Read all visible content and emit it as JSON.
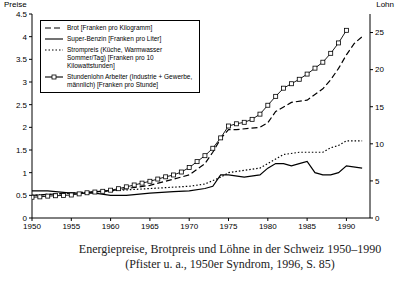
{
  "chart_data": {
    "type": "line",
    "title": "Energiepreise, Brotpreis und Löhne in der Schweiz 1950–1990",
    "subtitle": "(Pfister u. a., 1950er Syndrom, 1996, S. 85)",
    "ylabel": "Preise",
    "y2label": "Lohn",
    "xlim": [
      1950,
      1993
    ],
    "xticks": [
      1950,
      1955,
      1960,
      1965,
      1970,
      1975,
      1980,
      1985,
      1990
    ],
    "ylim": [
      0,
      4.5
    ],
    "yticks": [
      0,
      0.5,
      1,
      1.5,
      2,
      2.5,
      3,
      3.5,
      4,
      4.5
    ],
    "y2lim": [
      0,
      27.5
    ],
    "y2ticks": [
      0,
      5,
      10,
      15,
      20,
      25
    ],
    "legend": "upper left",
    "grid": false,
    "series": [
      {
        "name": "Brot [Franken pro Kilogramm]",
        "color": "#000000",
        "line_style": "dashed",
        "marker": "none",
        "x": [
          1950,
          1955,
          1960,
          1965,
          1970,
          1972,
          1973,
          1974,
          1975,
          1976,
          1979,
          1980,
          1981,
          1983,
          1985,
          1987,
          1988,
          1989,
          1990,
          1991,
          1992
        ],
        "values": [
          0.5,
          0.55,
          0.6,
          0.72,
          0.95,
          1.2,
          1.45,
          1.75,
          1.95,
          1.95,
          2.0,
          2.1,
          2.35,
          2.55,
          2.6,
          2.85,
          3.05,
          3.3,
          3.6,
          3.85,
          4.0
        ]
      },
      {
        "name": "Super-Benzin [Franken pro Liter]",
        "color": "#000000",
        "line_style": "solid",
        "marker": "none",
        "x": [
          1950,
          1952,
          1955,
          1958,
          1960,
          1962,
          1965,
          1968,
          1970,
          1972,
          1973,
          1974,
          1975,
          1977,
          1979,
          1980,
          1981,
          1982,
          1983,
          1984,
          1985,
          1986,
          1987,
          1988,
          1989,
          1990,
          1992
        ],
        "values": [
          0.6,
          0.6,
          0.55,
          0.55,
          0.5,
          0.5,
          0.55,
          0.58,
          0.6,
          0.65,
          0.7,
          0.95,
          0.95,
          0.9,
          0.95,
          1.1,
          1.2,
          1.2,
          1.15,
          1.2,
          1.25,
          1.0,
          0.95,
          0.95,
          1.0,
          1.15,
          1.1
        ]
      },
      {
        "name": "Strompreis (Küche, Warmwasser Sommer/Tag) [Franken pro 10 Kilowattstunden]",
        "color": "#000000",
        "line_style": "dotted",
        "marker": "none",
        "x": [
          1950,
          1955,
          1960,
          1965,
          1970,
          1972,
          1974,
          1975,
          1977,
          1979,
          1980,
          1982,
          1984,
          1985,
          1987,
          1988,
          1989,
          1990,
          1992
        ],
        "values": [
          0.5,
          0.55,
          0.6,
          0.65,
          0.7,
          0.75,
          0.9,
          1.0,
          1.05,
          1.1,
          1.2,
          1.4,
          1.45,
          1.45,
          1.45,
          1.55,
          1.6,
          1.7,
          1.7
        ]
      },
      {
        "name": "Stundenlohn Arbeiter (Industrie + Gewerbe, männlich) [Franken pro Stunde]",
        "color": "#000000",
        "line_style": "solid",
        "marker": "square",
        "axis": "y2",
        "x": [
          1950,
          1951,
          1952,
          1953,
          1954,
          1955,
          1956,
          1957,
          1958,
          1959,
          1960,
          1961,
          1962,
          1963,
          1964,
          1965,
          1966,
          1967,
          1968,
          1969,
          1970,
          1971,
          1972,
          1973,
          1974,
          1975,
          1976,
          1977,
          1978,
          1979,
          1980,
          1981,
          1982,
          1983,
          1984,
          1985,
          1986,
          1987,
          1988,
          1989,
          1990
        ],
        "values": [
          2.8,
          2.85,
          2.95,
          3.0,
          3.05,
          3.1,
          3.25,
          3.4,
          3.5,
          3.6,
          3.75,
          3.95,
          4.2,
          4.45,
          4.7,
          4.95,
          5.25,
          5.55,
          5.8,
          6.2,
          6.8,
          7.6,
          8.4,
          9.4,
          10.8,
          12.4,
          12.7,
          12.9,
          13.3,
          14.0,
          15.2,
          16.4,
          17.5,
          18.1,
          18.7,
          19.4,
          20.2,
          21.0,
          22.2,
          23.6,
          25.3
        ]
      }
    ]
  }
}
